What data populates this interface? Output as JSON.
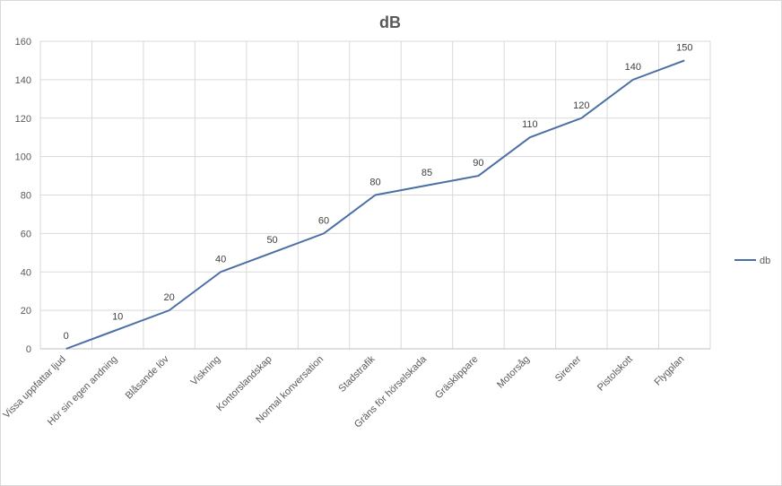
{
  "chart_data": {
    "type": "line",
    "title": "dB",
    "categories": [
      "Vissa uppfattar ljud",
      "Hör sin egen andning",
      "Blåsande löv",
      "Viskning",
      "Kontorslandskap",
      "Normal konversation",
      "Stadstrafik",
      "Gräns för hörselskada",
      "Gräsklippare",
      "Motorsåg",
      "Sirener",
      "Pistolskott",
      "Flygplan"
    ],
    "series": [
      {
        "name": "db",
        "values": [
          0,
          10,
          20,
          40,
          50,
          60,
          80,
          85,
          90,
          110,
          120,
          140,
          150
        ]
      }
    ],
    "ylim": [
      0,
      160
    ],
    "yticks": [
      0,
      20,
      40,
      60,
      80,
      100,
      120,
      140,
      160
    ],
    "grid": true,
    "legend": "right",
    "colors": {
      "line": "#4a6fa5",
      "grid": "#d9d9d9",
      "text": "#595959"
    }
  }
}
